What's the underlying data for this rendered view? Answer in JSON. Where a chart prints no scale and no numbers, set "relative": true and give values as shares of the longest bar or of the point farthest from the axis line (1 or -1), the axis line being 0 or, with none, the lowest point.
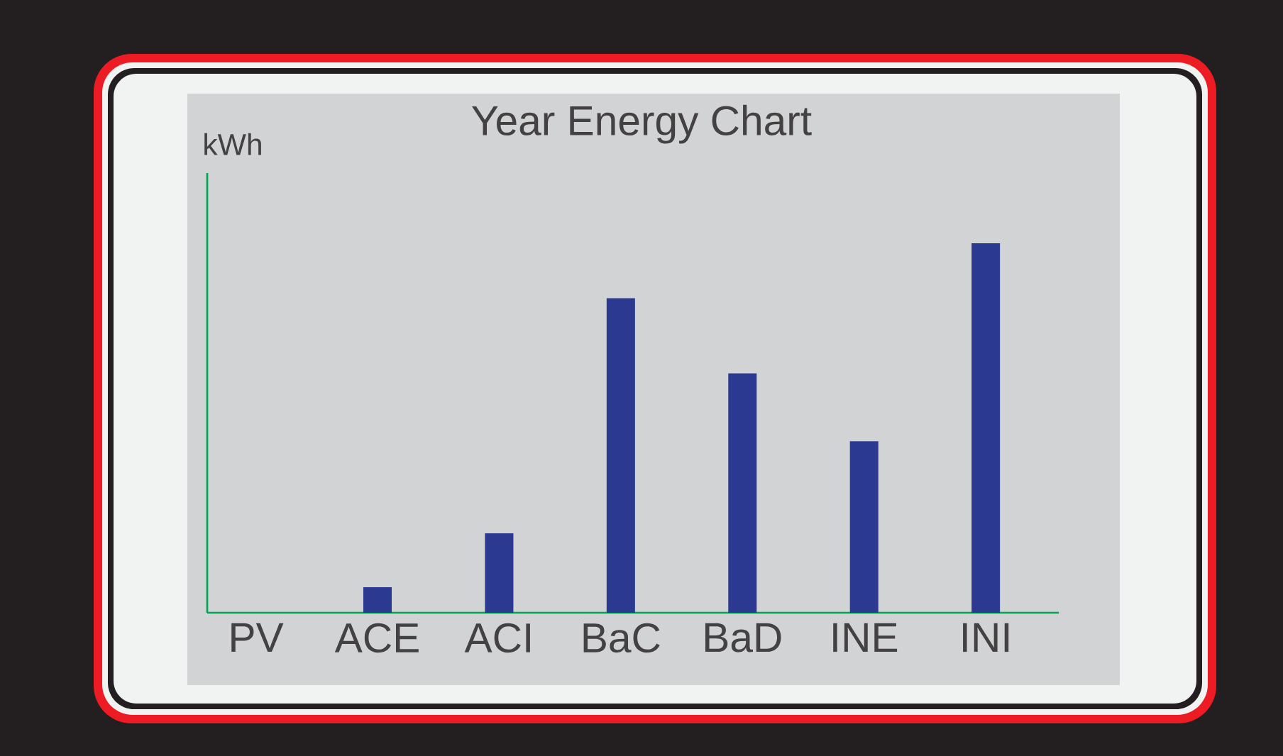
{
  "chart_data": {
    "type": "bar",
    "title": "Year Energy Chart",
    "ylabel": "kWh",
    "categories": [
      "PV",
      "ACE",
      "ACI",
      "BaC",
      "BaD",
      "INE",
      "INI"
    ],
    "values": [
      0,
      0.069,
      0.215,
      0.851,
      0.648,
      0.464,
      1
    ],
    "color": "#2b3990",
    "relative": true
  }
}
